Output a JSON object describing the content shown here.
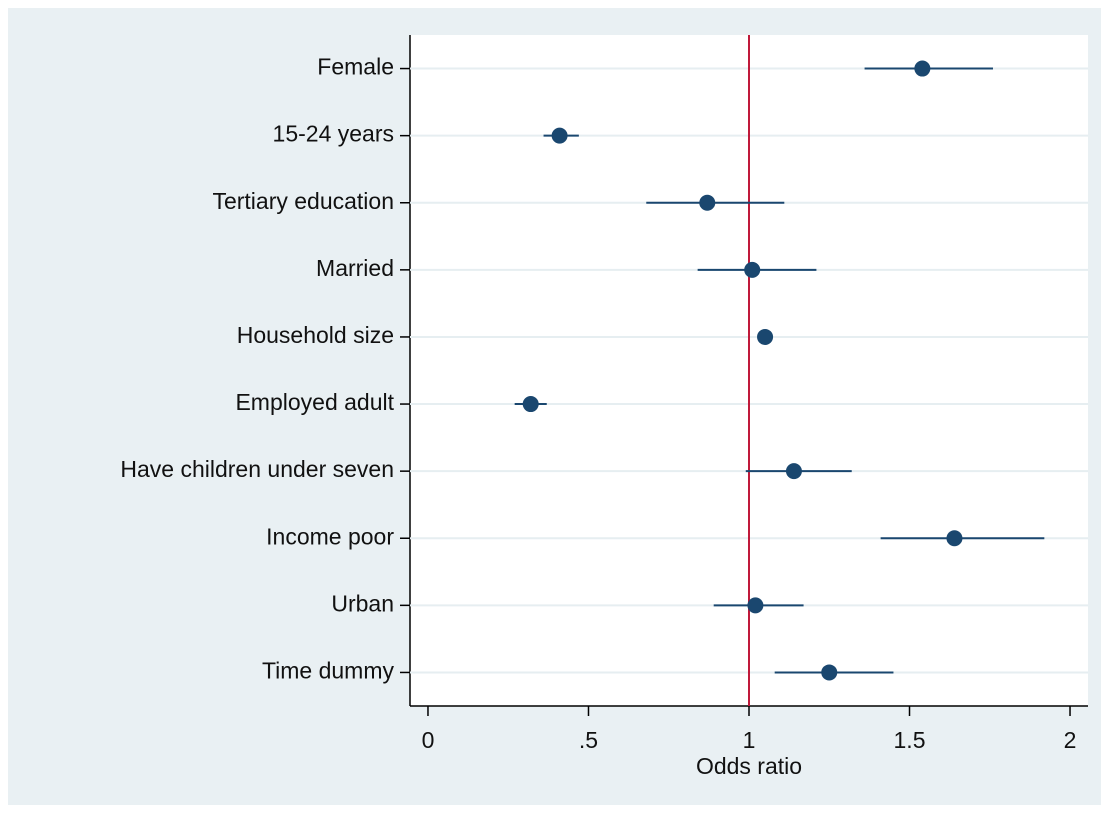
{
  "chart_data": {
    "type": "forest",
    "xlabel": "Odds ratio",
    "categories": [
      "Female",
      "15-24 years",
      "Tertiary education",
      "Married",
      "Household size",
      "Employed adult",
      "Have children under seven",
      "Income poor",
      "Urban",
      "Time dummy"
    ],
    "values": [
      1.54,
      0.41,
      0.87,
      1.01,
      1.05,
      0.32,
      1.14,
      1.64,
      1.02,
      1.25
    ],
    "lower": [
      1.36,
      0.36,
      0.68,
      0.84,
      1.04,
      0.27,
      0.99,
      1.41,
      0.89,
      1.08
    ],
    "upper": [
      1.76,
      0.47,
      1.11,
      1.21,
      1.07,
      0.37,
      1.32,
      1.92,
      1.17,
      1.45
    ],
    "color": "#1a476f",
    "refline": 1,
    "refline_color": "#c0193a",
    "xlim": [
      -0.056,
      2.056
    ],
    "xticks": [
      0,
      {
        "value": 0.5,
        "label": ".5"
      },
      1,
      1.5,
      2
    ],
    "grid": true
  }
}
